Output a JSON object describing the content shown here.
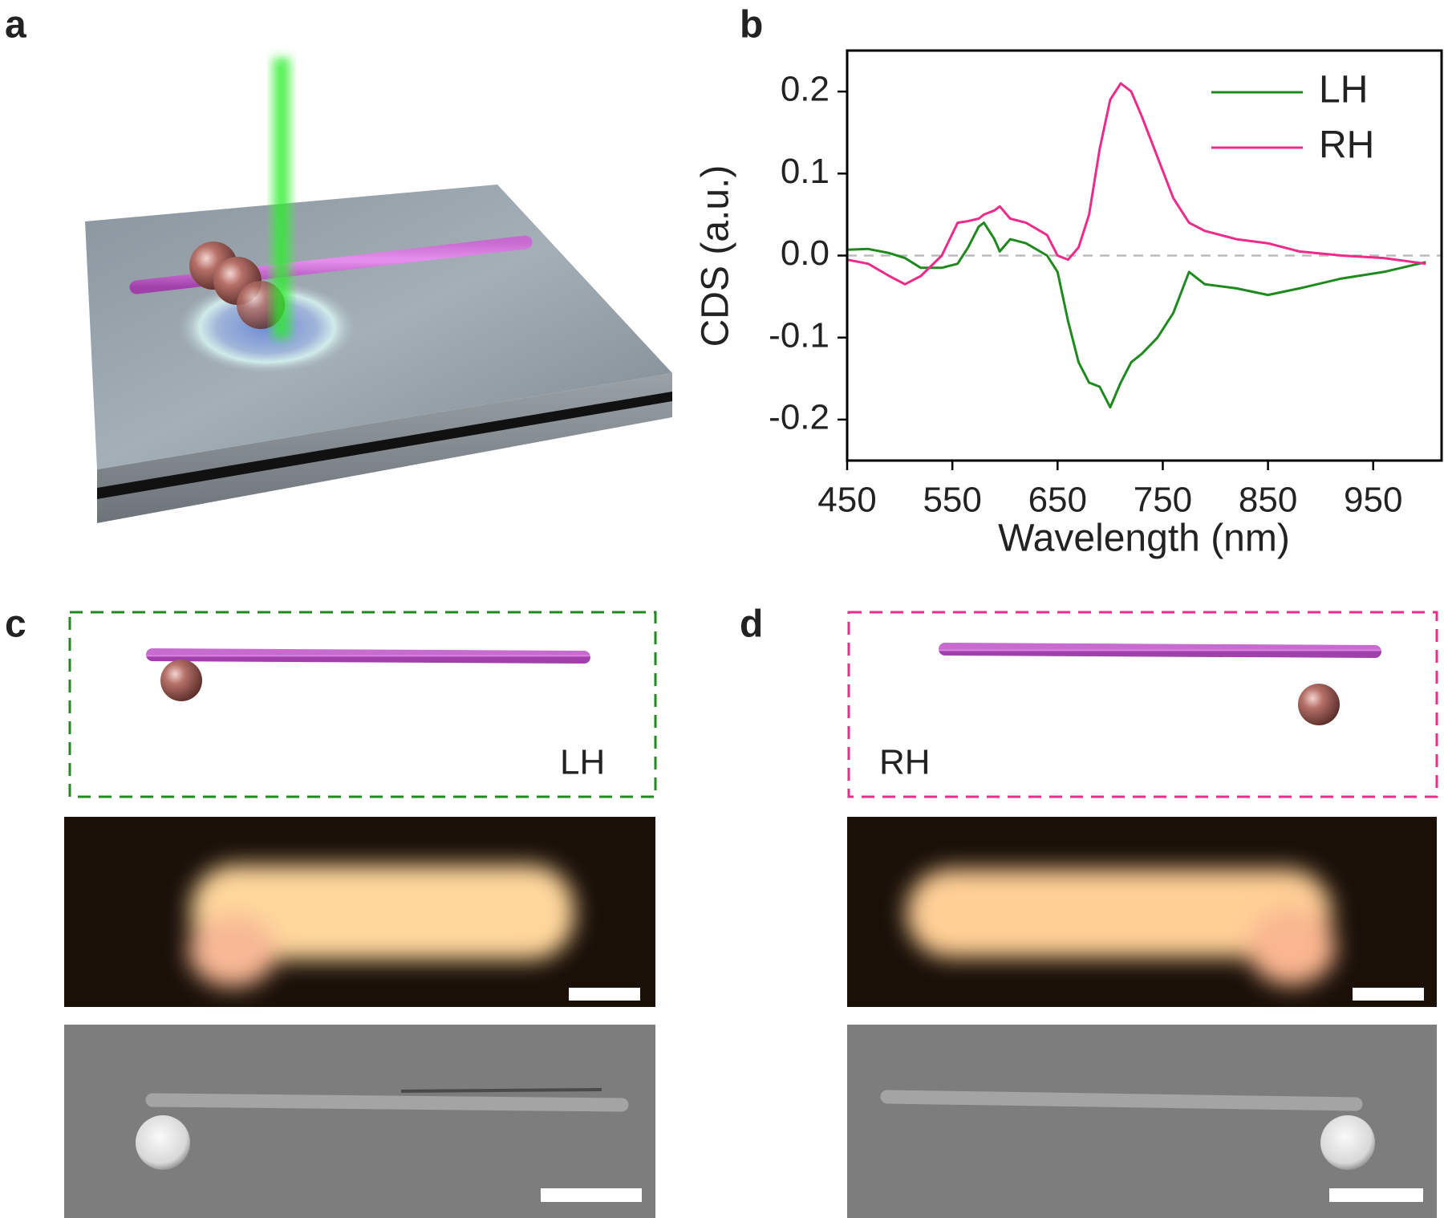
{
  "panel_labels": [
    "a",
    "b",
    "c",
    "d"
  ],
  "panel_c": {
    "label": "LH"
  },
  "panel_d": {
    "label": "RH"
  },
  "chart_data": {
    "type": "line",
    "x_label": "Wavelength (nm)",
    "y_label": "CDS (a.u.)",
    "x": [
      450,
      470,
      490,
      505,
      520,
      540,
      555,
      565,
      575,
      580,
      590,
      595,
      605,
      620,
      640,
      650,
      660,
      670,
      680,
      690,
      700,
      710,
      720,
      730,
      745,
      760,
      775,
      790,
      820,
      850,
      880,
      920,
      960,
      1000
    ],
    "series": [
      {
        "name": "LH",
        "color": "#1e8a1e",
        "values": [
          0.007,
          0.008,
          0.003,
          -0.003,
          -0.015,
          -0.015,
          -0.01,
          0.01,
          0.035,
          0.04,
          0.02,
          0.005,
          0.02,
          0.015,
          0.0,
          -0.02,
          -0.08,
          -0.13,
          -0.155,
          -0.16,
          -0.185,
          -0.155,
          -0.13,
          -0.12,
          -0.1,
          -0.07,
          -0.02,
          -0.035,
          -0.04,
          -0.048,
          -0.04,
          -0.028,
          -0.02,
          -0.008
        ]
      },
      {
        "name": "RH",
        "color": "#ee2a8a",
        "values": [
          -0.005,
          -0.01,
          -0.025,
          -0.035,
          -0.025,
          0.0,
          0.04,
          0.042,
          0.045,
          0.05,
          0.055,
          0.06,
          0.045,
          0.04,
          0.025,
          0.0,
          -0.005,
          0.01,
          0.05,
          0.13,
          0.19,
          0.21,
          0.2,
          0.17,
          0.12,
          0.07,
          0.04,
          0.03,
          0.02,
          0.015,
          0.005,
          0.0,
          -0.003,
          -0.01
        ]
      }
    ],
    "xlim": [
      450,
      1015
    ],
    "ylim": [
      -0.25,
      0.25
    ],
    "xticks": [
      450,
      550,
      650,
      750,
      850,
      950
    ],
    "yticks": [
      -0.2,
      -0.1,
      {
        "value": 0,
        "label": "0.0"
      },
      0.1,
      0.2
    ],
    "legend": "upper right"
  }
}
